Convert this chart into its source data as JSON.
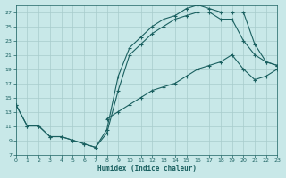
{
  "bg_color": "#c8e8e8",
  "grid_color": "#a8cccc",
  "line_color": "#1a6060",
  "xlabel": "Humidex (Indice chaleur)",
  "xlim": [
    0,
    23
  ],
  "ylim": [
    7,
    28
  ],
  "yticks": [
    7,
    9,
    11,
    13,
    15,
    17,
    19,
    21,
    23,
    25,
    27
  ],
  "xticks": [
    0,
    1,
    2,
    3,
    4,
    5,
    6,
    7,
    8,
    9,
    10,
    11,
    12,
    13,
    14,
    15,
    16,
    17,
    18,
    19,
    20,
    21,
    22,
    23
  ],
  "line1_x": [
    0,
    1,
    2,
    3,
    4,
    5,
    6,
    7,
    8,
    9,
    10,
    11,
    12,
    13,
    14,
    15,
    16,
    17,
    18,
    19,
    20,
    21,
    22,
    23
  ],
  "line1_y": [
    14,
    11,
    11,
    9.5,
    9.5,
    9,
    8.5,
    8,
    10.5,
    18,
    22,
    23.5,
    25,
    26,
    26.5,
    27.5,
    28,
    27.5,
    27,
    27,
    27,
    22.5,
    20,
    19.5
  ],
  "line2_x": [
    0,
    1,
    2,
    3,
    4,
    5,
    6,
    7,
    8,
    9,
    10,
    11,
    12,
    13,
    14,
    15,
    16,
    17,
    18,
    19,
    20,
    21,
    22,
    23
  ],
  "line2_y": [
    14,
    11,
    11,
    9.5,
    9.5,
    9,
    8.5,
    8,
    10,
    16,
    21,
    22.5,
    24,
    25,
    26,
    26.5,
    27,
    27,
    26,
    26,
    23,
    21,
    20,
    19.5
  ],
  "line3_x": [
    8,
    9,
    10,
    11,
    12,
    13,
    14,
    15,
    16,
    17,
    18,
    19,
    20,
    21,
    22,
    23
  ],
  "line3_y": [
    12,
    13,
    14,
    15,
    16,
    16.5,
    17,
    18,
    19,
    19.5,
    20,
    21,
    19,
    17.5,
    18,
    19
  ]
}
